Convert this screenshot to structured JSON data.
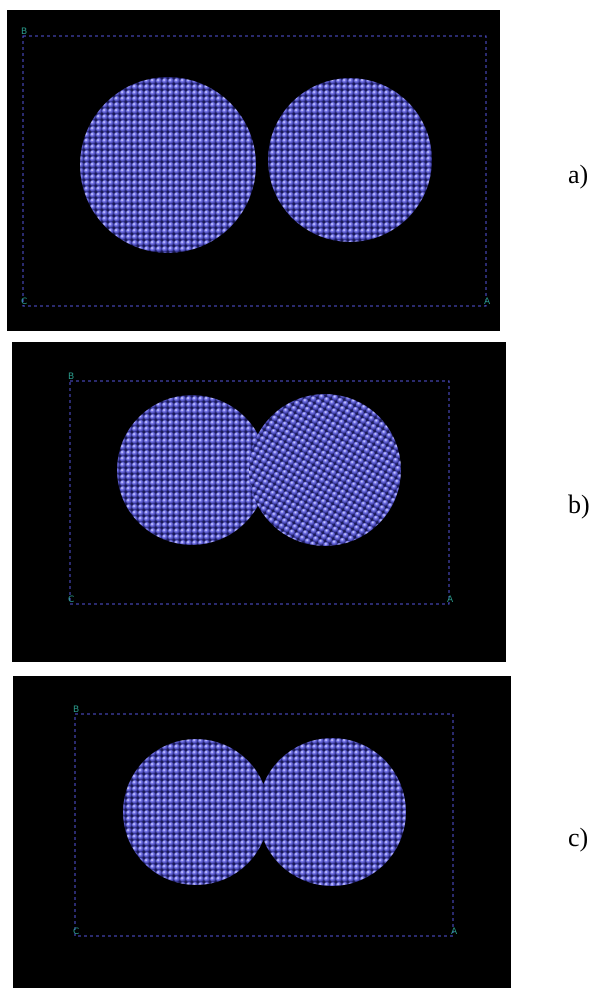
{
  "panels": [
    {
      "label": "a)",
      "corners": {
        "top_left": "B",
        "bottom_left": "C",
        "bottom_right": "A"
      }
    },
    {
      "label": "b)",
      "corners": {
        "top_left": "B",
        "bottom_left": "C",
        "bottom_right": "A"
      }
    },
    {
      "label": "c)",
      "corners": {
        "top_left": "B",
        "bottom_left": "C",
        "bottom_right": "A"
      }
    }
  ]
}
